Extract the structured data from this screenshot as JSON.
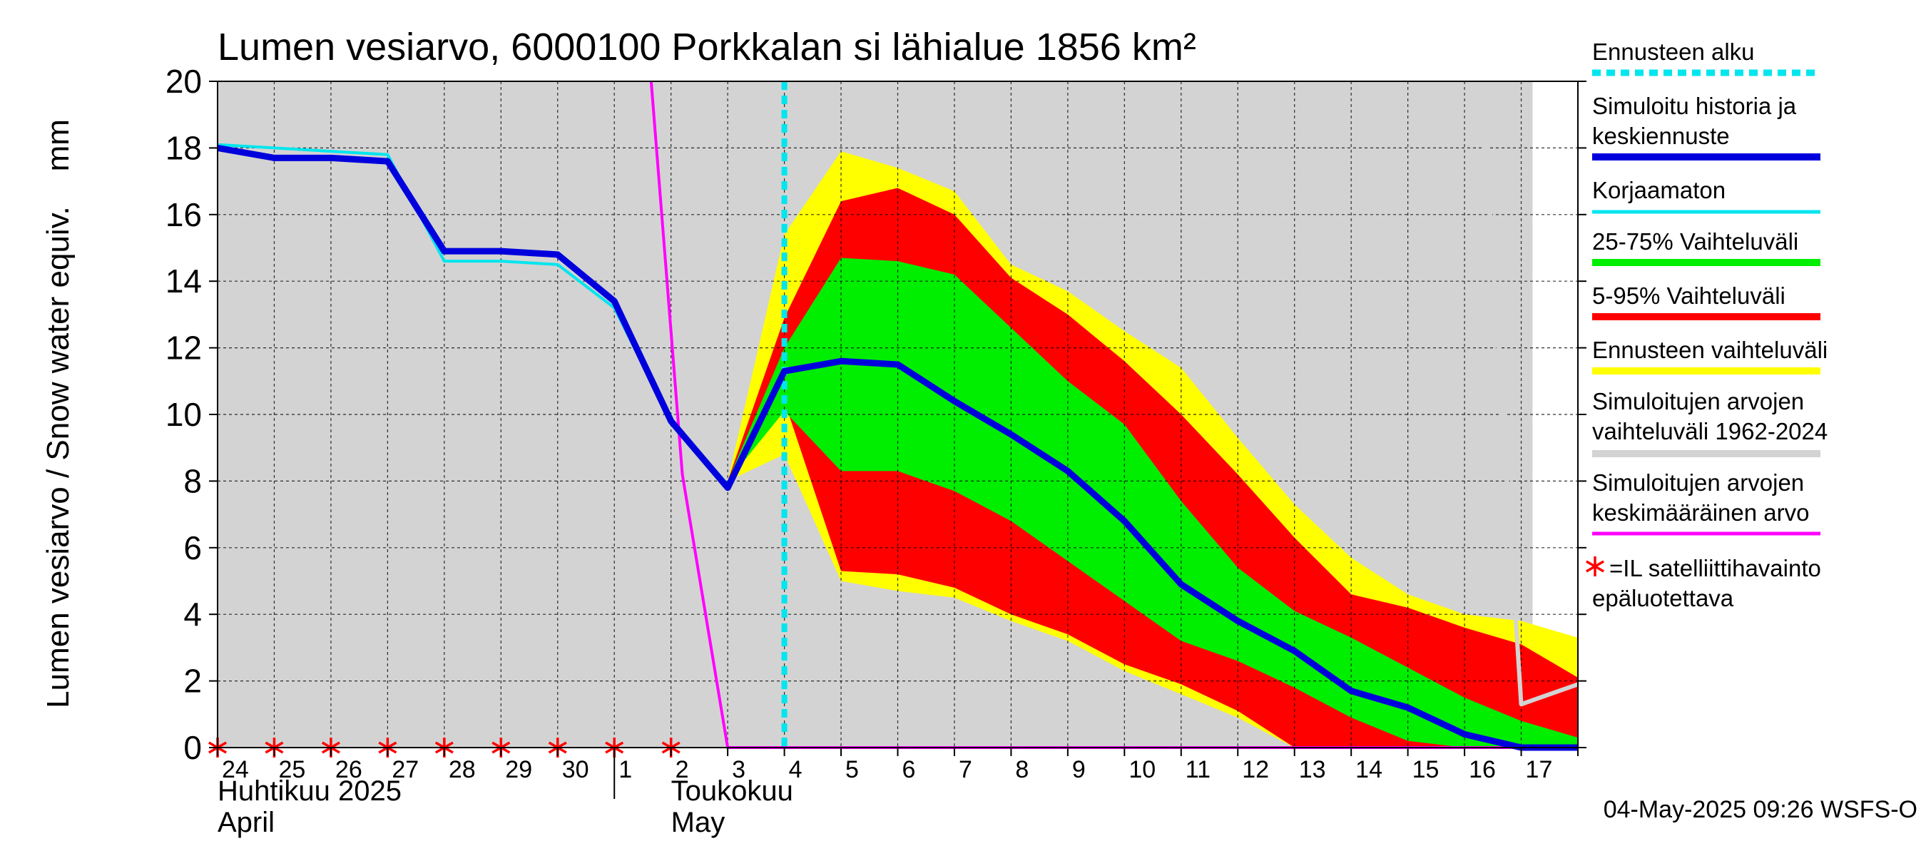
{
  "chart_data": {
    "type": "area",
    "title": "Lumen vesiarvo, 6000100 Porkkalan si lähialue 1856 km²",
    "ylabel": "Lumen vesiarvo / Snow water equiv.    mm",
    "ylim": [
      0,
      20
    ],
    "y_ticks": [
      "0",
      "2",
      "4",
      "6",
      "8",
      "10",
      "12",
      "14",
      "16",
      "18",
      "20"
    ],
    "grid": true,
    "legend_position": "right",
    "x_ticks": [
      "24",
      "25",
      "26",
      "27",
      "28",
      "29",
      "30",
      "1",
      "2",
      "3",
      "4",
      "5",
      "6",
      "7",
      "8",
      "9",
      "10",
      "11",
      "12",
      "13",
      "14",
      "15",
      "16",
      "17"
    ],
    "month_labels": [
      {
        "fi": "Huhtikuu  2025",
        "en": "April"
      },
      {
        "fi": "Toukokuu",
        "en": "May"
      }
    ],
    "x_unit": "days from 24 April 2025",
    "forecast_start": 10.0,
    "series": [
      {
        "name": "Simuloitujen arvojen vaihteluväli 1962-2024",
        "kind": "band",
        "color": "#d3d3d3",
        "x": [
          0,
          22.3,
          23.2
        ],
        "lower": [
          0,
          0,
          0
        ],
        "upper": [
          20,
          20,
          20
        ]
      },
      {
        "name": "Ennusteen vaihteluväli",
        "kind": "band",
        "color": "#ffff00",
        "x": [
          9,
          10,
          11,
          12,
          13,
          14,
          15,
          16,
          17,
          18,
          19,
          20,
          21,
          22,
          23,
          24
        ],
        "lower": [
          8.0,
          8.8,
          5.0,
          4.7,
          4.5,
          3.8,
          3.2,
          2.3,
          1.6,
          0.9,
          0,
          0,
          0,
          0,
          0,
          0
        ],
        "upper": [
          8.0,
          15.4,
          17.9,
          17.4,
          16.7,
          14.5,
          13.7,
          12.5,
          11.4,
          9.3,
          7.3,
          5.7,
          4.6,
          4.0,
          3.8,
          3.3
        ]
      },
      {
        "name": "5-95% Vaihteluväli",
        "kind": "band",
        "color": "#ff0000",
        "x": [
          9,
          10,
          11,
          12,
          13,
          14,
          15,
          16,
          17,
          18,
          19,
          20,
          21,
          22,
          23,
          24
        ],
        "lower": [
          8.0,
          10.4,
          5.3,
          5.2,
          4.8,
          4.0,
          3.4,
          2.5,
          1.9,
          1.1,
          0,
          0,
          0,
          0,
          0,
          0
        ],
        "upper": [
          8.0,
          12.9,
          16.4,
          16.8,
          16.0,
          14.1,
          13.0,
          11.6,
          10.0,
          8.2,
          6.3,
          4.6,
          4.2,
          3.6,
          3.1,
          2.1
        ]
      },
      {
        "name": "25-75% Vaihteluväli",
        "kind": "band",
        "color": "#00ee00",
        "x": [
          9,
          10,
          11,
          12,
          13,
          14,
          15,
          16,
          17,
          18,
          19,
          20,
          21,
          22,
          23,
          24
        ],
        "lower": [
          8.0,
          10.1,
          8.3,
          8.3,
          7.7,
          6.8,
          5.6,
          4.4,
          3.2,
          2.6,
          1.8,
          0.9,
          0.2,
          0,
          0,
          0
        ],
        "upper": [
          8.0,
          12.0,
          14.7,
          14.6,
          14.2,
          12.6,
          11.0,
          9.7,
          7.4,
          5.4,
          4.1,
          3.3,
          2.4,
          1.5,
          0.8,
          0.3
        ]
      },
      {
        "name": "Simuloitujen arvojen keskimääräinen arvo",
        "kind": "line",
        "color": "#ff00ff",
        "x": [
          7.65,
          8.2,
          9.0,
          24.0
        ],
        "y": [
          20,
          8.2,
          0,
          0
        ]
      },
      {
        "name": "Korjaamaton",
        "kind": "line",
        "color": "#00e5ee",
        "x": [
          0,
          1,
          2,
          3,
          4,
          5,
          6,
          7,
          8,
          9,
          10
        ],
        "y": [
          18.1,
          18.0,
          17.9,
          17.8,
          14.6,
          14.6,
          14.5,
          13.2,
          9.8,
          7.9,
          11.4
        ]
      },
      {
        "name": "Simuloitu historia ja keskiennuste",
        "kind": "line",
        "color": "#0000dd",
        "x": [
          0,
          1,
          2,
          3,
          4,
          5,
          6,
          7,
          8,
          9,
          10,
          11,
          12,
          13,
          14,
          15,
          16,
          17,
          18,
          19,
          20,
          21,
          22,
          23,
          24
        ],
        "y": [
          18.0,
          17.7,
          17.7,
          17.6,
          14.9,
          14.9,
          14.8,
          13.4,
          9.8,
          7.8,
          11.3,
          11.6,
          11.5,
          10.4,
          9.4,
          8.3,
          6.8,
          4.9,
          3.8,
          2.9,
          1.7,
          1.2,
          0.4,
          0,
          0
        ]
      },
      {
        "name": "",
        "kind": "line",
        "color": "#d3d3d3",
        "x": [
          22.3,
          23.0,
          24.0
        ],
        "y": [
          20,
          1.3,
          1.9
        ]
      }
    ],
    "satellite_marks_x": [
      0,
      1,
      2,
      3,
      4,
      5,
      6,
      7,
      8
    ],
    "legend": [
      {
        "label": "Ennusteen alku",
        "color": "#00e5ee",
        "style": "dashed"
      },
      {
        "label": "Simuloitu historia ja keskiennuste",
        "color": "#0000dd",
        "style": "thick"
      },
      {
        "label": "Korjaamaton",
        "color": "#00e5ee",
        "style": "line"
      },
      {
        "label": "25-75% Vaihteluväli",
        "color": "#00ee00",
        "style": "thick"
      },
      {
        "label": "5-95% Vaihteluväli",
        "color": "#ff0000",
        "style": "thick"
      },
      {
        "label": "Ennusteen vaihteluväli",
        "color": "#ffff00",
        "style": "thick"
      },
      {
        "label": "Simuloitujen arvojen vaihteluväli 1962-2024",
        "color": "#d3d3d3",
        "style": "thick"
      },
      {
        "label": "Simuloitujen arvojen keskimääräinen arvo",
        "color": "#ff00ff",
        "style": "line"
      },
      {
        "label": "=IL satelliittihavainto epäluotettava",
        "color": "#ff0000",
        "style": "asterisk"
      }
    ],
    "footer": "04-May-2025 09:26 WSFS-O"
  }
}
